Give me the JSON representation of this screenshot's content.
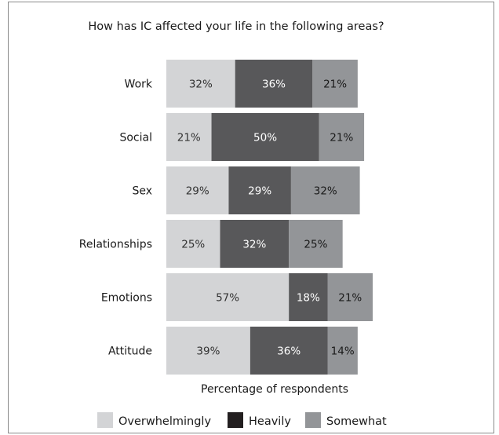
{
  "chart_data": {
    "type": "bar",
    "orientation": "horizontal",
    "stacked": true,
    "title": "How has IC affected your life in the following areas?",
    "xlabel": "Percentage of respondents",
    "ylabel": "",
    "xlim": [
      0,
      100
    ],
    "grid": false,
    "legend_position": "bottom",
    "categories": [
      "Work",
      "Social",
      "Sex",
      "Relationships",
      "Emotions",
      "Attitude"
    ],
    "series": [
      {
        "name": "Overwhelmingly",
        "color": "#d3d4d6",
        "text_color": "#333333",
        "values": [
          32,
          21,
          29,
          25,
          57,
          39
        ],
        "labels": [
          "32%",
          "21%",
          "29%",
          "25%",
          "57%",
          "39%"
        ]
      },
      {
        "name": "Heavily",
        "color": "#58585a",
        "text_color": "#ffffff",
        "values": [
          36,
          50,
          29,
          32,
          18,
          36
        ],
        "labels": [
          "36%",
          "50%",
          "29%",
          "32%",
          "18%",
          "36%"
        ]
      },
      {
        "name": "Somewhat",
        "color": "#939598",
        "text_color": "#1a1a1a",
        "values": [
          21,
          21,
          32,
          25,
          21,
          14
        ],
        "labels": [
          "21%",
          "21%",
          "32%",
          "25%",
          "21%",
          "14%"
        ]
      }
    ],
    "legend_swatch_colors": [
      "#d3d4d6",
      "#231f20",
      "#939598"
    ]
  }
}
